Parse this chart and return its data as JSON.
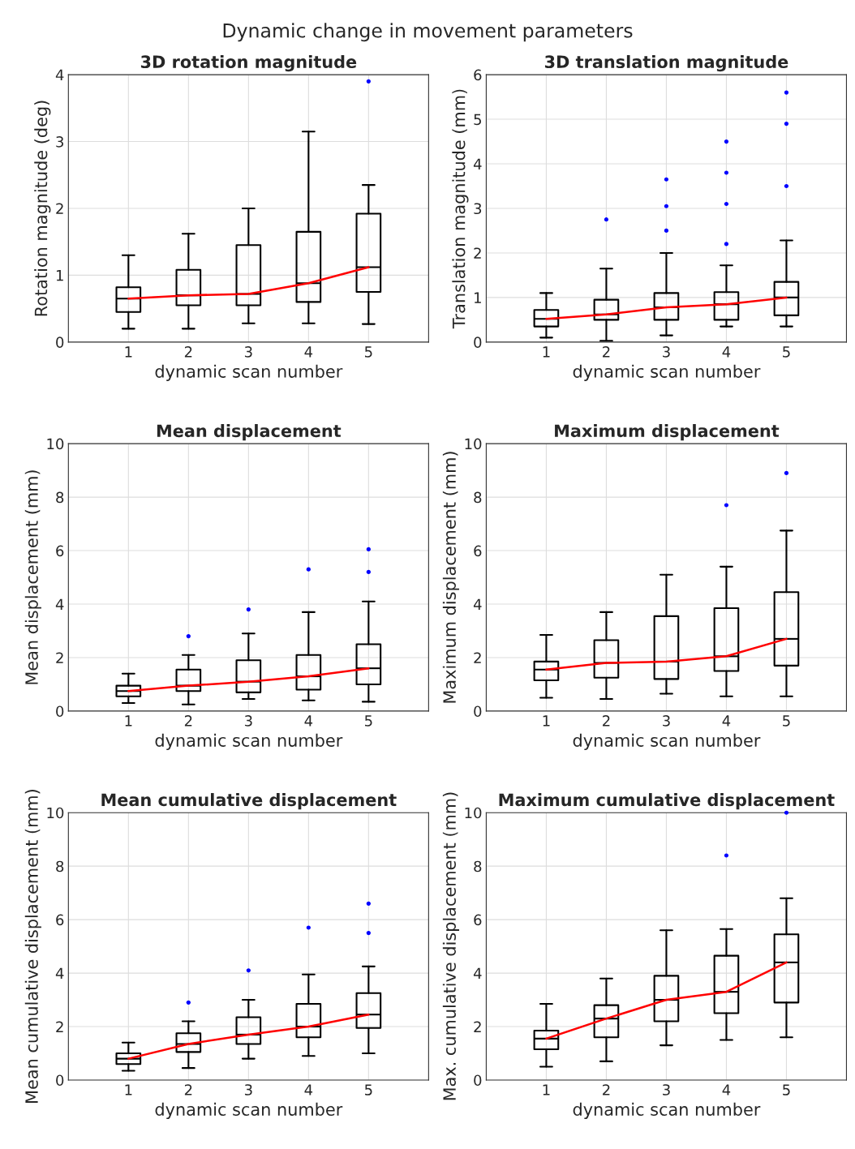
{
  "chart_data": [
    {
      "type": "other",
      "title": "Dynamic change in movement parameters"
    },
    {
      "type": "box",
      "title": "3D rotation magnitude",
      "xlabel": "dynamic scan number",
      "ylabel": "Rotation magnitude (deg)",
      "categories": [
        "1",
        "2",
        "3",
        "4",
        "5"
      ],
      "ylim": [
        0,
        4
      ],
      "yticks": [
        0,
        1,
        2,
        3,
        4
      ],
      "grid": true,
      "series": [
        {
          "type": "box",
          "color": "#000000",
          "boxes": [
            {
              "low": 0.2,
              "q1": 0.45,
              "median": 0.65,
              "q3": 0.82,
              "high": 1.3
            },
            {
              "low": 0.2,
              "q1": 0.55,
              "median": 0.7,
              "q3": 1.08,
              "high": 1.62
            },
            {
              "low": 0.28,
              "q1": 0.55,
              "median": 0.72,
              "q3": 1.45,
              "high": 2.0
            },
            {
              "low": 0.28,
              "q1": 0.6,
              "median": 0.88,
              "q3": 1.65,
              "high": 3.15
            },
            {
              "low": 0.27,
              "q1": 0.75,
              "median": 1.12,
              "q3": 1.92,
              "high": 2.35
            }
          ]
        },
        {
          "type": "line",
          "color": "#ff0000",
          "values": [
            0.65,
            0.7,
            0.72,
            0.88,
            1.12
          ]
        },
        {
          "type": "scatter",
          "color": "#0000ff",
          "x": [
            "5"
          ],
          "values": [
            3.9
          ]
        }
      ]
    },
    {
      "type": "box",
      "title": "3D translation magnitude",
      "xlabel": "dynamic scan number",
      "ylabel": "Translation magnitude (mm)",
      "categories": [
        "1",
        "2",
        "3",
        "4",
        "5"
      ],
      "ylim": [
        0,
        6
      ],
      "yticks": [
        0,
        1,
        2,
        3,
        4,
        5,
        6
      ],
      "grid": true,
      "series": [
        {
          "type": "box",
          "color": "#000000",
          "boxes": [
            {
              "low": 0.1,
              "q1": 0.35,
              "median": 0.52,
              "q3": 0.72,
              "high": 1.1
            },
            {
              "low": 0.03,
              "q1": 0.5,
              "median": 0.62,
              "q3": 0.95,
              "high": 1.65
            },
            {
              "low": 0.15,
              "q1": 0.5,
              "median": 0.78,
              "q3": 1.1,
              "high": 2.0
            },
            {
              "low": 0.35,
              "q1": 0.5,
              "median": 0.85,
              "q3": 1.12,
              "high": 1.72
            },
            {
              "low": 0.35,
              "q1": 0.6,
              "median": 1.0,
              "q3": 1.35,
              "high": 2.28
            }
          ]
        },
        {
          "type": "line",
          "color": "#ff0000",
          "values": [
            0.52,
            0.62,
            0.78,
            0.85,
            1.0
          ]
        },
        {
          "type": "scatter",
          "color": "#0000ff",
          "x": [
            "2",
            "3",
            "3",
            "3",
            "4",
            "4",
            "4",
            "4",
            "5",
            "5",
            "5"
          ],
          "values": [
            2.75,
            2.5,
            3.05,
            3.65,
            2.2,
            3.1,
            3.8,
            4.5,
            3.5,
            4.9,
            5.6
          ]
        }
      ]
    },
    {
      "type": "box",
      "title": "Mean displacement",
      "xlabel": "dynamic scan number",
      "ylabel": "Mean displacement (mm)",
      "categories": [
        "1",
        "2",
        "3",
        "4",
        "5"
      ],
      "ylim": [
        0,
        10
      ],
      "yticks": [
        0,
        2,
        4,
        6,
        8,
        10
      ],
      "grid": true,
      "series": [
        {
          "type": "box",
          "color": "#000000",
          "boxes": [
            {
              "low": 0.3,
              "q1": 0.55,
              "median": 0.75,
              "q3": 0.95,
              "high": 1.4
            },
            {
              "low": 0.25,
              "q1": 0.75,
              "median": 0.95,
              "q3": 1.55,
              "high": 2.1
            },
            {
              "low": 0.45,
              "q1": 0.7,
              "median": 1.1,
              "q3": 1.9,
              "high": 2.9
            },
            {
              "low": 0.4,
              "q1": 0.8,
              "median": 1.3,
              "q3": 2.1,
              "high": 3.7
            },
            {
              "low": 0.35,
              "q1": 1.0,
              "median": 1.6,
              "q3": 2.5,
              "high": 4.1
            }
          ]
        },
        {
          "type": "line",
          "color": "#ff0000",
          "values": [
            0.75,
            0.95,
            1.1,
            1.3,
            1.6
          ]
        },
        {
          "type": "scatter",
          "color": "#0000ff",
          "x": [
            "2",
            "3",
            "4",
            "5",
            "5"
          ],
          "values": [
            2.8,
            3.8,
            5.3,
            5.2,
            6.05
          ]
        }
      ]
    },
    {
      "type": "box",
      "title": "Maximum displacement",
      "xlabel": "dynamic scan number",
      "ylabel": "Maximum displacement (mm)",
      "categories": [
        "1",
        "2",
        "3",
        "4",
        "5"
      ],
      "ylim": [
        0,
        10
      ],
      "yticks": [
        0,
        2,
        4,
        6,
        8,
        10
      ],
      "grid": true,
      "series": [
        {
          "type": "box",
          "color": "#000000",
          "boxes": [
            {
              "low": 0.5,
              "q1": 1.15,
              "median": 1.55,
              "q3": 1.85,
              "high": 2.85
            },
            {
              "low": 0.45,
              "q1": 1.25,
              "median": 1.8,
              "q3": 2.65,
              "high": 3.7
            },
            {
              "low": 0.65,
              "q1": 1.2,
              "median": 1.85,
              "q3": 3.55,
              "high": 5.1
            },
            {
              "low": 0.55,
              "q1": 1.5,
              "median": 2.05,
              "q3": 3.85,
              "high": 5.4
            },
            {
              "low": 0.55,
              "q1": 1.7,
              "median": 2.7,
              "q3": 4.45,
              "high": 6.75
            }
          ]
        },
        {
          "type": "line",
          "color": "#ff0000",
          "values": [
            1.55,
            1.8,
            1.85,
            2.05,
            2.7
          ]
        },
        {
          "type": "scatter",
          "color": "#0000ff",
          "x": [
            "4",
            "5"
          ],
          "values": [
            7.7,
            8.9
          ]
        }
      ]
    },
    {
      "type": "box",
      "title": "Mean cumulative displacement",
      "xlabel": "dynamic scan number",
      "ylabel": "Mean cumulative displacement (mm)",
      "categories": [
        "1",
        "2",
        "3",
        "4",
        "5"
      ],
      "ylim": [
        0,
        10
      ],
      "yticks": [
        0,
        2,
        4,
        6,
        8,
        10
      ],
      "grid": true,
      "series": [
        {
          "type": "box",
          "color": "#000000",
          "boxes": [
            {
              "low": 0.35,
              "q1": 0.6,
              "median": 0.8,
              "q3": 1.0,
              "high": 1.4
            },
            {
              "low": 0.45,
              "q1": 1.05,
              "median": 1.35,
              "q3": 1.75,
              "high": 2.2
            },
            {
              "low": 0.8,
              "q1": 1.35,
              "median": 1.7,
              "q3": 2.35,
              "high": 3.0
            },
            {
              "low": 0.9,
              "q1": 1.6,
              "median": 2.0,
              "q3": 2.85,
              "high": 3.95
            },
            {
              "low": 1.0,
              "q1": 1.95,
              "median": 2.45,
              "q3": 3.25,
              "high": 4.25
            }
          ]
        },
        {
          "type": "line",
          "color": "#ff0000",
          "values": [
            0.8,
            1.35,
            1.7,
            2.0,
            2.45
          ]
        },
        {
          "type": "scatter",
          "color": "#0000ff",
          "x": [
            "2",
            "3",
            "4",
            "5",
            "5"
          ],
          "values": [
            2.9,
            4.1,
            5.7,
            5.5,
            6.6
          ]
        }
      ]
    },
    {
      "type": "box",
      "title": "Maximum cumulative displacement",
      "xlabel": "dynamic scan number",
      "ylabel": "Max. cumulative displacement (mm)",
      "categories": [
        "1",
        "2",
        "3",
        "4",
        "5"
      ],
      "ylim": [
        0,
        10
      ],
      "yticks": [
        0,
        2,
        4,
        6,
        8,
        10
      ],
      "grid": true,
      "series": [
        {
          "type": "box",
          "color": "#000000",
          "boxes": [
            {
              "low": 0.5,
              "q1": 1.15,
              "median": 1.55,
              "q3": 1.85,
              "high": 2.85
            },
            {
              "low": 0.7,
              "q1": 1.6,
              "median": 2.3,
              "q3": 2.8,
              "high": 3.8
            },
            {
              "low": 1.3,
              "q1": 2.2,
              "median": 3.0,
              "q3": 3.9,
              "high": 5.6
            },
            {
              "low": 1.5,
              "q1": 2.5,
              "median": 3.3,
              "q3": 4.65,
              "high": 5.65
            },
            {
              "low": 1.6,
              "q1": 2.9,
              "median": 4.4,
              "q3": 5.45,
              "high": 6.8
            }
          ]
        },
        {
          "type": "line",
          "color": "#ff0000",
          "values": [
            1.55,
            2.3,
            3.0,
            3.3,
            4.4
          ]
        },
        {
          "type": "scatter",
          "color": "#0000ff",
          "x": [
            "4",
            "5"
          ],
          "values": [
            8.4,
            10.0
          ]
        }
      ]
    }
  ]
}
